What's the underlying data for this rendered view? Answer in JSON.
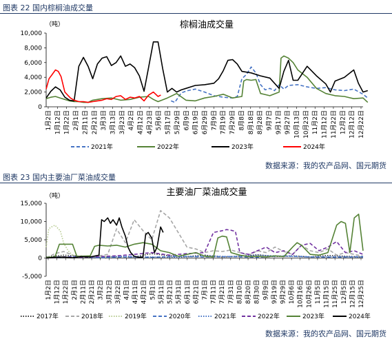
{
  "captions": {
    "fig22": "图表 22 国内棕榈油成交量",
    "fig23": "图表 23 国内主要油厂菜油成交量",
    "source1": "数据来源：我的农产品网、国元期货",
    "source2": "数据来源：我的农产品网、国元期货"
  },
  "colors": {
    "caption": "#1f3864",
    "series_2017": "#2f2f2f",
    "series_2018": "#a6a6a6",
    "series_2019": "#b5c98e",
    "series_2020": "#4472c4",
    "series_2021": "#4472c4",
    "series_2022": "#7030a0",
    "series_2023": "#548235",
    "series_2024": "#000000"
  },
  "chart_data": [
    {
      "type": "line",
      "title": "棕榈油成交量",
      "ylabel": "（吨）",
      "ylim": [
        0,
        10000
      ],
      "yticks": [
        "0",
        "2,000",
        "4,000",
        "6,000",
        "8,000",
        "10,000"
      ],
      "xticks": [
        "1月2日",
        "1月12日",
        "1月22日",
        "2月1日",
        "2月11日",
        "2月21日",
        "3月3日",
        "3月13日",
        "3月23日",
        "4月2日",
        "4月12日",
        "4月23日",
        "5月6日",
        "5月17日",
        "5月29日",
        "6月9日",
        "6月19日",
        "6月29日",
        "7月9日",
        "7月19日",
        "7月29日",
        "8月8日",
        "8月18日",
        "8月28日",
        "9月7日",
        "9月17日",
        "9月27日",
        "10月13日",
        "10月23日",
        "11月2日",
        "11月12日",
        "11月22日",
        "12月2日",
        "12月12日",
        "12月22日"
      ],
      "series": [
        {
          "name": "2021年",
          "style": "dashed",
          "color": "#4472c4",
          "x": [
            13.4,
            13.8,
            14.5,
            15.2,
            16,
            17,
            18,
            19,
            20,
            20.5,
            21,
            21.5,
            22,
            22.5,
            23,
            23.5,
            24,
            24.5,
            25,
            25.5,
            26,
            27,
            28,
            29,
            30,
            31,
            32,
            33,
            34,
            34.5
          ],
          "values": [
            800,
            600,
            1900,
            2200,
            2400,
            2000,
            1500,
            1300,
            1200,
            1400,
            3800,
            4400,
            5400,
            4600,
            3000,
            2300,
            2500,
            2200,
            3000,
            2400,
            2900,
            3000,
            2700,
            2500,
            2600,
            2300,
            2200,
            2400,
            1700,
            1200
          ]
        },
        {
          "name": "2022年",
          "style": "solid",
          "color": "#548235",
          "x": [
            0,
            0.5,
            1,
            1.5,
            2,
            2.5,
            3,
            3.5,
            4,
            4.5,
            5,
            6,
            7,
            8,
            9,
            10,
            11,
            11.5,
            12,
            13,
            14,
            15,
            16,
            17,
            18,
            19,
            20,
            21,
            21.2,
            21.5,
            22,
            22.5,
            23,
            24,
            25,
            25.2,
            25.5,
            26,
            26.5,
            27,
            28,
            29,
            30,
            31,
            32,
            33,
            34,
            34.5
          ],
          "values": [
            1100,
            1300,
            1400,
            1200,
            1000,
            800,
            700,
            700,
            600,
            600,
            900,
            1100,
            1200,
            900,
            1000,
            1300,
            1400,
            1000,
            700,
            1200,
            1800,
            900,
            800,
            1200,
            1400,
            1700,
            1200,
            1400,
            3500,
            3700,
            3600,
            3700,
            1800,
            1500,
            2000,
            6600,
            6900,
            6600,
            6000,
            5000,
            4000,
            2500,
            1800,
            1500,
            1400,
            1100,
            1200,
            600
          ]
        },
        {
          "name": "2023年",
          "style": "solid",
          "color": "#000000",
          "x": [
            0,
            0.5,
            1,
            1.5,
            2,
            2.5,
            3,
            3.5,
            4,
            4.5,
            5,
            5.5,
            6,
            6.5,
            7,
            7.5,
            8,
            8.5,
            9,
            9.5,
            10,
            10.5,
            11,
            11.5,
            12,
            12.5,
            13,
            13.5,
            14,
            14.5,
            15,
            16,
            17,
            18,
            18.5,
            19,
            19.5,
            20,
            20.5,
            21,
            22,
            23,
            24,
            25,
            25.5,
            26,
            26.5,
            27,
            28,
            29,
            30,
            30.5,
            31,
            32,
            33,
            33.5,
            34,
            34.5
          ],
          "values": [
            1200,
            2100,
            2700,
            2300,
            1300,
            900,
            800,
            5500,
            6700,
            5500,
            3800,
            5800,
            6600,
            6800,
            5600,
            6000,
            6900,
            5500,
            5800,
            5300,
            4200,
            2100,
            5400,
            8800,
            8800,
            5200,
            2000,
            2500,
            2000,
            2300,
            2500,
            2900,
            3000,
            3200,
            3800,
            4900,
            6300,
            6400,
            5800,
            4800,
            4600,
            4200,
            3900,
            2500,
            4800,
            6300,
            3600,
            3600,
            5500,
            4200,
            3100,
            2000,
            3500,
            4000,
            5000,
            3200,
            2000,
            2200
          ]
        },
        {
          "name": "2024年",
          "style": "solid",
          "color": "#ff0000",
          "x": [
            0,
            0.3,
            0.6,
            1,
            1.3,
            1.6,
            2,
            2.3,
            2.6,
            3,
            3.5,
            4,
            4.5,
            5,
            5.5,
            6,
            6.5,
            7,
            7.5,
            8,
            8.5,
            9,
            9.5,
            10,
            10.5,
            11,
            11.5,
            12,
            12.3
          ],
          "values": [
            2400,
            3800,
            4300,
            5000,
            4800,
            4100,
            2000,
            1600,
            1200,
            900,
            700,
            700,
            600,
            700,
            800,
            900,
            1100,
            1000,
            1400,
            1500,
            1000,
            1300,
            1200,
            1400,
            800,
            1600,
            2000,
            1400,
            1600
          ]
        }
      ]
    },
    {
      "type": "line",
      "title": "主要油厂菜油成交量",
      "ylabel": "（吨）",
      "ylim": [
        -5000,
        15000
      ],
      "yticks": [
        "-5,000",
        "0",
        "5,000",
        "10,000",
        "15,000"
      ],
      "xticks": [
        "1月2日",
        "1月12日",
        "1月22日",
        "2月1日",
        "2月11日",
        "2月21日",
        "3月2日",
        "3月12日",
        "3月22日",
        "4月1日",
        "4月11日",
        "4月21日",
        "5月1日",
        "5月11日",
        "5月21日",
        "5月31日",
        "6月11日",
        "6月21日",
        "7月1日",
        "7月11日",
        "7月21日",
        "7月31日",
        "8月10日",
        "8月20日",
        "8月30日",
        "9月9日",
        "9月19日",
        "9月29日",
        "10月6日",
        "10月16日",
        "10月26日",
        "11月5日",
        "11月15日",
        "11月25日",
        "12月5日",
        "12月15日",
        "12月25日"
      ],
      "series": [
        {
          "name": "2017年",
          "style": "dotted",
          "color": "#2f2f2f",
          "x": [
            0,
            2,
            4,
            6,
            8,
            10,
            12,
            14,
            16,
            18,
            20,
            22,
            24,
            26,
            28,
            30,
            32,
            34,
            36
          ],
          "values": [
            300,
            800,
            500,
            200,
            400,
            300,
            1200,
            600,
            400,
            800,
            300,
            500,
            900,
            400,
            600,
            300,
            700,
            500,
            300
          ]
        },
        {
          "name": "2018年",
          "style": "dashed",
          "color": "#a6a6a6",
          "x": [
            0,
            1,
            2,
            3,
            4,
            5,
            6,
            7,
            8,
            9,
            10,
            11,
            12,
            13,
            14,
            15,
            16,
            17,
            18,
            19,
            20,
            21,
            22,
            23,
            24,
            25,
            26,
            27,
            28,
            29,
            30,
            31,
            32,
            33,
            34,
            35,
            36
          ],
          "values": [
            0,
            1200,
            1800,
            800,
            300,
            400,
            600,
            1000,
            8000,
            4200,
            10500,
            7500,
            5000,
            13000,
            11000,
            7000,
            3000,
            2500,
            1500,
            2000,
            1800,
            2200,
            1500,
            800,
            2000,
            1500,
            3000,
            1800,
            1000,
            3500,
            2000,
            1500,
            2500,
            800,
            1500,
            1000,
            500
          ]
        },
        {
          "name": "2019年",
          "style": "dotted",
          "color": "#b5c98e",
          "x": [
            0,
            0.3,
            0.6,
            1,
            1.3,
            1.6,
            2,
            2.5,
            3,
            3.5,
            4,
            5,
            6,
            7,
            8
          ],
          "values": [
            3000,
            8000,
            8500,
            9000,
            8200,
            7500,
            4000,
            2000,
            800,
            500,
            600,
            400,
            300,
            500,
            200
          ]
        },
        {
          "name": "2020年",
          "style": "dashed",
          "color": "#4472c4",
          "x": [
            0,
            3,
            6,
            9,
            12,
            15,
            18,
            21,
            24,
            27,
            30,
            33,
            36
          ],
          "values": [
            200,
            400,
            100,
            300,
            200,
            500,
            300,
            400,
            200,
            600,
            300,
            200,
            400
          ]
        },
        {
          "name": "2021年",
          "style": "dotted",
          "color": "#4472c4",
          "x": [
            0,
            3,
            6,
            9,
            12,
            15,
            18,
            21,
            24,
            27,
            30,
            33,
            36
          ],
          "values": [
            100,
            300,
            200,
            500,
            300,
            200,
            600,
            400,
            800,
            500,
            300,
            400,
            200
          ]
        },
        {
          "name": "2022年",
          "style": "dashed",
          "color": "#7030a0",
          "x": [
            0,
            2,
            4,
            6,
            8,
            10,
            12,
            14,
            16,
            18,
            19,
            20,
            20.5,
            21,
            21.5,
            22,
            23,
            24,
            25,
            26,
            27,
            28,
            29,
            30,
            31,
            32,
            33,
            34,
            35,
            36
          ],
          "values": [
            0,
            300,
            200,
            400,
            600,
            1000,
            1500,
            800,
            1200,
            1500,
            7000,
            7500,
            7800,
            7600,
            7300,
            1500,
            1000,
            2000,
            3000,
            1500,
            2000,
            1000,
            3500,
            4000,
            2000,
            3000,
            4500,
            1500,
            2000,
            1000
          ]
        },
        {
          "name": "2023年",
          "style": "solid",
          "color": "#548235",
          "x": [
            0,
            1,
            1.5,
            2,
            3,
            3.5,
            4,
            5,
            5.5,
            6,
            7,
            8,
            9,
            10,
            11,
            12,
            13,
            14,
            15,
            16,
            17,
            18,
            19,
            19.5,
            20,
            20.5,
            21,
            22,
            23,
            24,
            25,
            26,
            27,
            28,
            28.5,
            29,
            30,
            31,
            32,
            33,
            33.5,
            34,
            34.5,
            35,
            35.5,
            36
          ],
          "values": [
            200,
            300,
            3800,
            3800,
            3800,
            400,
            500,
            600,
            3200,
            3500,
            3300,
            3500,
            3000,
            3800,
            4200,
            3800,
            2000,
            1500,
            500,
            1000,
            1500,
            500,
            300,
            5500,
            6000,
            5800,
            1500,
            800,
            400,
            500,
            300,
            600,
            400,
            3000,
            4200,
            3500,
            1000,
            800,
            1500,
            9000,
            10000,
            9500,
            1500,
            11000,
            12000,
            2000
          ]
        },
        {
          "name": "2024年",
          "style": "solid",
          "color": "#000000",
          "x": [
            0,
            1,
            2,
            3,
            4,
            5,
            6,
            6.3,
            6.6,
            7,
            7.3,
            7.6,
            8,
            8.3,
            8.6,
            9,
            9.3,
            9.6,
            10,
            10.5,
            11,
            11.3,
            11.6,
            12,
            12.3,
            12.6,
            13,
            13.3
          ],
          "values": [
            0,
            200,
            300,
            100,
            400,
            300,
            800,
            10500,
            10000,
            11000,
            9500,
            10500,
            9000,
            11000,
            8500,
            6000,
            3000,
            1500,
            500,
            200,
            300,
            6500,
            7000,
            5500,
            1500,
            3000,
            8500,
            7000
          ]
        }
      ]
    }
  ]
}
